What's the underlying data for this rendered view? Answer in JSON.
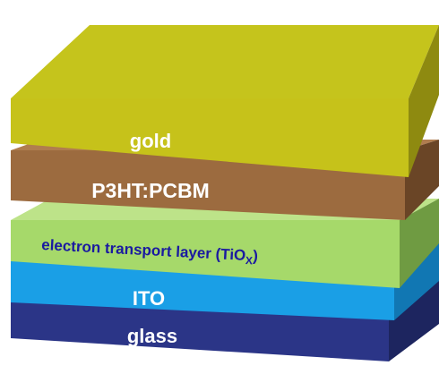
{
  "layers": [
    {
      "label": "glass",
      "front": "#2b3587",
      "top": "#3d47a3",
      "side": "#1d255f",
      "text_color": "#ffffff"
    },
    {
      "label": "ITO",
      "front": "#1a9fe6",
      "top": "#4cc0f5",
      "side": "#1177b3",
      "text_color": "#ffffff"
    },
    {
      "label": "electron transport layer (TiO",
      "subscript": "X",
      "suffix": ")",
      "front": "#a6d96a",
      "top": "#bde389",
      "side": "#6f9b42",
      "text_color": "#1a1aa0"
    },
    {
      "label": "P3HT:PCBM",
      "front": "#9c6b3f",
      "top": "#b07d4f",
      "side": "#6a4526",
      "text_color": "#ffffff"
    },
    {
      "label": "gold",
      "front": "#c6c21a",
      "top": "#c5c41c",
      "side": "#8e8a10",
      "text_color": "#ffffff"
    }
  ]
}
